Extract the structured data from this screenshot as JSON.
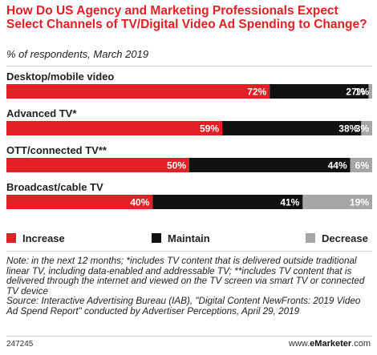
{
  "title": "How Do US Agency and Marketing Professionals Expect Select Channels of TV/Digital Video Ad Spending to Change?",
  "subtitle": "% of respondents, March 2019",
  "colors": {
    "title": "#e31f26",
    "increase": "#e31f26",
    "maintain": "#111111",
    "decrease": "#a6a6a6",
    "track": "#e6e6e6"
  },
  "chart_data": {
    "type": "bar",
    "stacked": true,
    "orientation": "horizontal",
    "categories": [
      "Desktop/mobile video",
      "Advanced TV*",
      "OTT/connected TV**",
      "Broadcast/cable TV"
    ],
    "series": [
      {
        "name": "Increase",
        "values": [
          72,
          59,
          50,
          40
        ],
        "labels": [
          "72%",
          "59%",
          "50%",
          "40%"
        ]
      },
      {
        "name": "Maintain",
        "values": [
          27,
          38,
          44,
          41
        ],
        "labels": [
          "27%",
          "38%",
          "44%",
          "41%"
        ]
      },
      {
        "name": "Decrease",
        "values": [
          1,
          3,
          6,
          19
        ],
        "labels": [
          "1%",
          "3%",
          "6%",
          "19%"
        ]
      }
    ],
    "xlim": [
      0,
      100
    ],
    "grid": false,
    "legend_position": "bottom"
  },
  "note": "Note: in the next 12 months; *includes TV content that is delivered outside traditional linear TV, including data-enabled and addressable TV; **includes TV content that is delivered through the internet and viewed on the TV screen via smart TV or connected TV device",
  "source": "Source: Interactive Advertising Bureau (IAB), \"Digital Content NewFronts: 2019 Video Ad Spend Report\" conducted by Advertiser Perceptions, April 29, 2019",
  "footer": {
    "id": "247245",
    "brand_prefix": "www.",
    "brand_name": "eMarketer",
    "brand_suffix": ".com"
  }
}
